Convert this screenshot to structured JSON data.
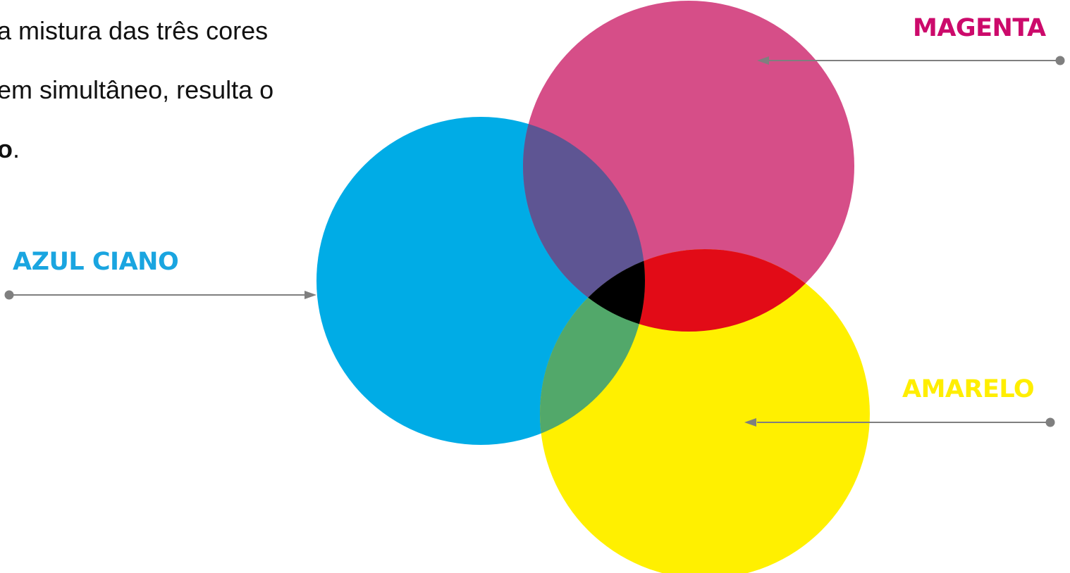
{
  "text": {
    "line1": "a mistura das três cores",
    "line2": "em simultâneo, resulta o",
    "line3_bold": "o",
    "line3_rest": "."
  },
  "labels": {
    "magenta": "MAGENTA",
    "cyan": "AZUL CIANO",
    "yellow": "AMARELO"
  },
  "colors": {
    "magenta": "#d64e88",
    "cyan": "#00ace6",
    "yellow": "#fff000",
    "cyan_magenta_overlap": "#5e5593",
    "magenta_yellow_overlap": "#e20b17",
    "cyan_yellow_overlap": "#52a86a",
    "center_overlap": "#000000",
    "magenta_label": "#cc0a6b",
    "cyan_label": "#1aa5e0",
    "yellow_label": "#ffee00",
    "arrow": "#7f7f7f"
  }
}
